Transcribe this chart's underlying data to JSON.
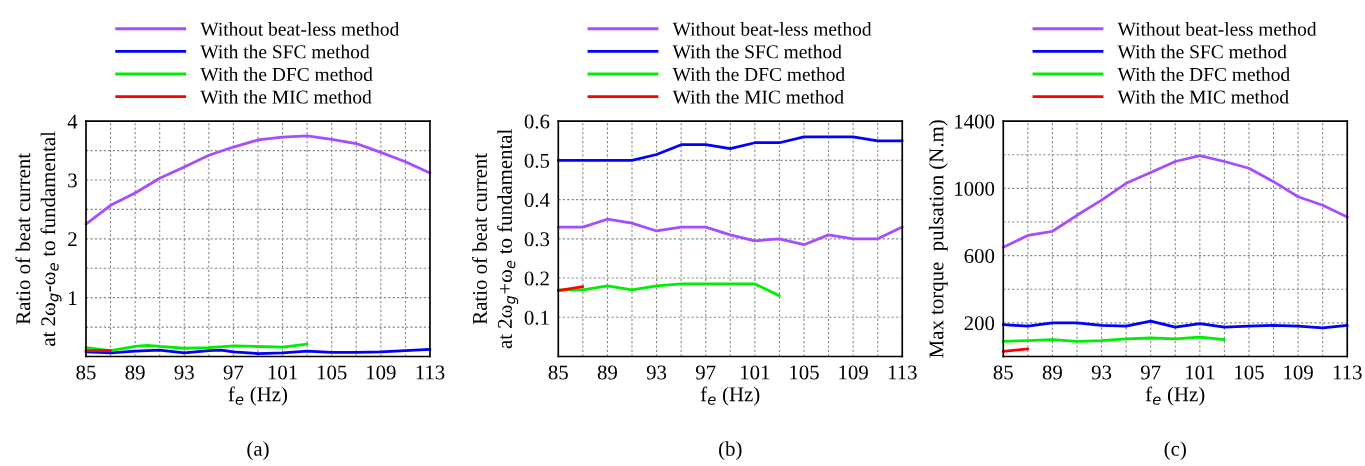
{
  "chart_data": [
    {
      "type": "line",
      "xlabel": "f$_{e}$ (Hz)",
      "ylabel": "Ratio of beat current\nat 2ω$_{g}$-ω$_{e}$ to fundamental",
      "annotations": [
        "(a)"
      ],
      "legend": "top",
      "grid": true,
      "line_style": "solid",
      "xlim": [
        85,
        113
      ],
      "xticks": [
        85,
        {
          "value": 87,
          "label": null
        },
        89,
        {
          "value": 91,
          "label": null
        },
        93,
        {
          "value": 95,
          "label": null
        },
        97,
        {
          "value": 99,
          "label": null
        },
        101,
        {
          "value": 103,
          "label": null
        },
        105,
        {
          "value": 107,
          "label": null
        },
        109,
        {
          "value": 111,
          "label": null
        },
        113
      ],
      "ylim": [
        0,
        4
      ],
      "yticks": [
        {
          "value": 0.5,
          "label": null
        },
        1,
        {
          "value": 1.5,
          "label": null
        },
        2,
        {
          "value": 2.5,
          "label": null
        },
        3,
        {
          "value": 3.5,
          "label": null
        },
        4
      ],
      "series": [
        {
          "name": "Without beat-less method",
          "color": "#a64dff",
          "x": [
            85,
            87,
            89,
            91,
            93,
            95,
            97,
            99,
            101,
            103,
            105,
            107,
            109,
            111,
            113
          ],
          "values": [
            2.25,
            2.57,
            2.78,
            3.03,
            3.22,
            3.42,
            3.56,
            3.68,
            3.73,
            3.75,
            3.69,
            3.62,
            3.47,
            3.31,
            3.12
          ]
        },
        {
          "name": "With the SFC method",
          "color": "#0000ff",
          "x": [
            85,
            87,
            89,
            91,
            93,
            95,
            96,
            97,
            99,
            101,
            103,
            105,
            107,
            109,
            111,
            113
          ],
          "values": [
            0.08,
            0.06,
            0.09,
            0.11,
            0.06,
            0.1,
            0.11,
            0.08,
            0.05,
            0.06,
            0.09,
            0.07,
            0.07,
            0.08,
            0.1,
            0.12
          ]
        },
        {
          "name": "With the DFC method",
          "color": "#00ee00",
          "x": [
            85,
            87,
            89,
            90,
            91,
            93,
            95,
            97,
            99,
            101,
            103
          ],
          "values": [
            0.15,
            0.1,
            0.17,
            0.19,
            0.17,
            0.14,
            0.15,
            0.18,
            0.17,
            0.16,
            0.21
          ]
        },
        {
          "name": "With the MIC method",
          "color": "#ff0000",
          "x": [
            85,
            87
          ],
          "values": [
            0.1,
            0.1
          ]
        }
      ]
    },
    {
      "type": "line",
      "xlabel": "f$_{e}$ (Hz)",
      "ylabel": "Ratio of beat current\nat 2ω$_{g}$+ω$_{e}$ to fundamental",
      "annotations": [
        "(b)"
      ],
      "legend": "top",
      "grid": true,
      "line_style": "solid",
      "xlim": [
        85,
        113
      ],
      "xticks": [
        85,
        {
          "value": 87,
          "label": null
        },
        89,
        {
          "value": 91,
          "label": null
        },
        93,
        {
          "value": 95,
          "label": null
        },
        97,
        {
          "value": 99,
          "label": null
        },
        101,
        {
          "value": 103,
          "label": null
        },
        105,
        {
          "value": 107,
          "label": null
        },
        109,
        {
          "value": 111,
          "label": null
        },
        113
      ],
      "ylim": [
        0,
        0.6
      ],
      "yticks": [
        0.1,
        0.2,
        0.3,
        0.4,
        0.5,
        0.6
      ],
      "series": [
        {
          "name": "Without beat-less method",
          "color": "#a64dff",
          "x": [
            85,
            87,
            89,
            91,
            93,
            95,
            97,
            99,
            101,
            103,
            105,
            107,
            109,
            111,
            113
          ],
          "values": [
            0.33,
            0.33,
            0.35,
            0.34,
            0.32,
            0.33,
            0.33,
            0.31,
            0.295,
            0.3,
            0.285,
            0.31,
            0.3,
            0.3,
            0.33
          ]
        },
        {
          "name": "With the SFC method",
          "color": "#0000ff",
          "x": [
            85,
            87,
            89,
            91,
            93,
            95,
            97,
            99,
            101,
            103,
            105,
            107,
            109,
            111,
            113
          ],
          "values": [
            0.5,
            0.5,
            0.5,
            0.5,
            0.515,
            0.54,
            0.54,
            0.53,
            0.545,
            0.545,
            0.56,
            0.56,
            0.56,
            0.55,
            0.55
          ]
        },
        {
          "name": "With the DFC method",
          "color": "#00ee00",
          "x": [
            85,
            87,
            89,
            91,
            93,
            95,
            97,
            99,
            101,
            103
          ],
          "values": [
            0.17,
            0.17,
            0.18,
            0.17,
            0.18,
            0.185,
            0.185,
            0.185,
            0.185,
            0.155
          ]
        },
        {
          "name": "With the MIC method",
          "color": "#ff0000",
          "x": [
            85,
            87
          ],
          "values": [
            0.168,
            0.178
          ]
        }
      ]
    },
    {
      "type": "line",
      "xlabel": "f$_{e}$ (Hz)",
      "ylabel": "Max torque  pulsation (N.m)",
      "annotations": [
        "(c)"
      ],
      "legend": "top",
      "grid": true,
      "line_style": "solid",
      "xlim": [
        85,
        113
      ],
      "xticks": [
        85,
        {
          "value": 87,
          "label": null
        },
        89,
        {
          "value": 91,
          "label": null
        },
        93,
        {
          "value": 95,
          "label": null
        },
        97,
        {
          "value": 99,
          "label": null
        },
        101,
        {
          "value": 103,
          "label": null
        },
        105,
        {
          "value": 107,
          "label": null
        },
        109,
        {
          "value": 111,
          "label": null
        },
        113
      ],
      "ylim": [
        0,
        1400
      ],
      "yticks": [
        200,
        {
          "value": 400,
          "label": null
        },
        600,
        {
          "value": 800,
          "label": null
        },
        1000,
        {
          "value": 1200,
          "label": null
        },
        1400
      ],
      "series": [
        {
          "name": "Without beat-less method",
          "color": "#a64dff",
          "x": [
            85,
            87,
            89,
            91,
            93,
            95,
            97,
            99,
            101,
            103,
            105,
            107,
            109,
            111,
            113
          ],
          "values": [
            650,
            720,
            745,
            840,
            930,
            1030,
            1095,
            1160,
            1195,
            1160,
            1120,
            1040,
            950,
            900,
            830
          ]
        },
        {
          "name": "With the SFC method",
          "color": "#0000ff",
          "x": [
            85,
            87,
            89,
            91,
            93,
            95,
            97,
            99,
            101,
            103,
            105,
            107,
            109,
            111,
            113
          ],
          "values": [
            190,
            180,
            200,
            200,
            185,
            180,
            210,
            175,
            195,
            175,
            180,
            185,
            180,
            170,
            185
          ]
        },
        {
          "name": "With the DFC method",
          "color": "#00ee00",
          "x": [
            85,
            87,
            89,
            91,
            93,
            95,
            97,
            99,
            101,
            103
          ],
          "values": [
            90,
            95,
            100,
            90,
            95,
            105,
            110,
            105,
            115,
            100
          ]
        },
        {
          "name": "With the MIC method",
          "color": "#ff0000",
          "x": [
            85,
            87
          ],
          "values": [
            30,
            45
          ]
        }
      ]
    }
  ]
}
